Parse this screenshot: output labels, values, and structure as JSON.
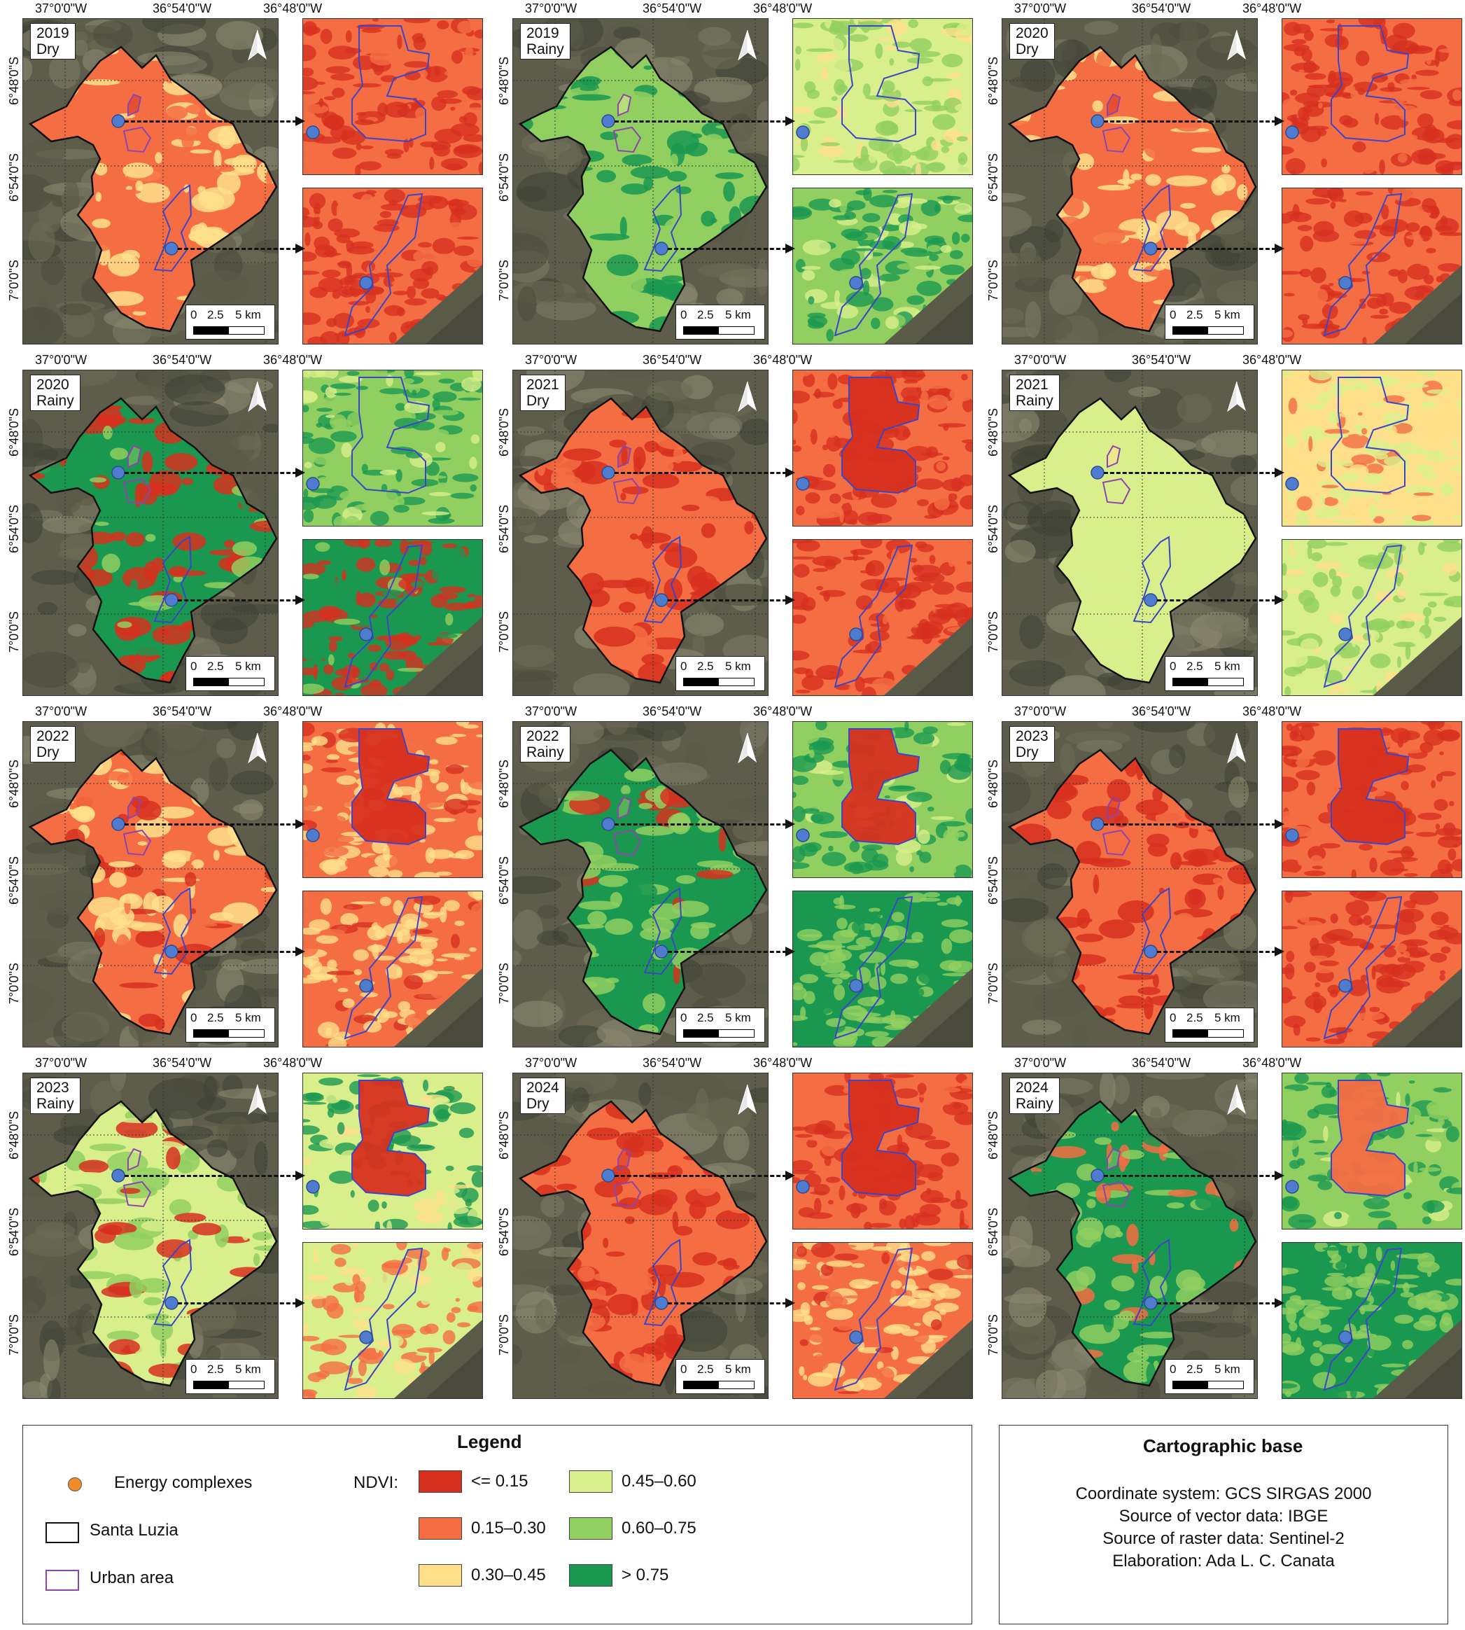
{
  "coordinates": {
    "x_ticks": [
      "37°0'0\"W",
      "36°54'0\"W",
      "36°48'0\"W"
    ],
    "y_ticks": [
      "6°48'0\"S",
      "6°54'0\"S",
      "7°0'0\"S"
    ]
  },
  "scale_bar": {
    "t0": "0",
    "t1": "2.5",
    "t2": "5 km"
  },
  "ndvi_colors": [
    "#d7301f",
    "#f46d43",
    "#fee08b",
    "#d9ef8b",
    "#91cf60",
    "#1a9850"
  ],
  "panels": [
    {
      "year": "2019",
      "season": "Dry",
      "base": 1,
      "noise": 2,
      "rest": 1,
      "inset_top_base": 1,
      "inset_top_noise": 0,
      "inset_bottom_base": 1,
      "inset_bottom_noise": 0
    },
    {
      "year": "2019",
      "season": "Rainy",
      "base": 4,
      "noise": 5,
      "rest": 4,
      "inset_top_base": 3,
      "inset_top_noise": 4,
      "inset_bottom_base": 4,
      "inset_bottom_noise": 5
    },
    {
      "year": "2020",
      "season": "Dry",
      "base": 1,
      "noise": 2,
      "rest": 1,
      "inset_top_base": 1,
      "inset_top_noise": 0,
      "inset_bottom_base": 1,
      "inset_bottom_noise": 0
    },
    {
      "year": "2020",
      "season": "Rainy",
      "base": 5,
      "noise": 0,
      "rest": 4,
      "inset_top_base": 4,
      "inset_top_noise": 5,
      "inset_bottom_base": 5,
      "inset_bottom_noise": 0
    },
    {
      "year": "2021",
      "season": "Dry",
      "base": 1,
      "noise": 0,
      "rest": 0,
      "inset_top_base": 1,
      "inset_top_noise": 0,
      "inset_bottom_base": 1,
      "inset_bottom_noise": 0
    },
    {
      "year": "2021",
      "season": "Rainy",
      "base": 3,
      "noise": 3,
      "rest": 3,
      "inset_top_base": 2,
      "inset_top_noise": 3,
      "inset_bottom_base": 3,
      "inset_bottom_noise": 4
    },
    {
      "year": "2022",
      "season": "Dry",
      "base": 1,
      "noise": 2,
      "rest": 0,
      "inset_top_base": 1,
      "inset_top_noise": 2,
      "inset_bottom_base": 1,
      "inset_bottom_noise": 2
    },
    {
      "year": "2022",
      "season": "Rainy",
      "base": 5,
      "noise": 4,
      "rest": 0,
      "inset_top_base": 4,
      "inset_top_noise": 5,
      "inset_bottom_base": 5,
      "inset_bottom_noise": 4
    },
    {
      "year": "2023",
      "season": "Dry",
      "base": 1,
      "noise": 0,
      "rest": 0,
      "inset_top_base": 1,
      "inset_top_noise": 0,
      "inset_bottom_base": 1,
      "inset_bottom_noise": 0
    },
    {
      "year": "2023",
      "season": "Rainy",
      "base": 3,
      "noise": 4,
      "rest": 0,
      "inset_top_base": 3,
      "inset_top_noise": 5,
      "inset_bottom_base": 3,
      "inset_bottom_noise": 1
    },
    {
      "year": "2024",
      "season": "Dry",
      "base": 1,
      "noise": 0,
      "rest": 0,
      "inset_top_base": 1,
      "inset_top_noise": 0,
      "inset_bottom_base": 1,
      "inset_bottom_noise": 2
    },
    {
      "year": "2024",
      "season": "Rainy",
      "base": 5,
      "noise": 4,
      "rest": 1,
      "inset_top_base": 4,
      "inset_top_noise": 5,
      "inset_bottom_base": 5,
      "inset_bottom_noise": 4
    }
  ],
  "legend": {
    "title": "Legend",
    "energy": "Energy complexes",
    "santa": "Santa Luzia",
    "urban": "Urban area",
    "ndvi_label": "NDVI:",
    "classes": [
      "<= 0.15",
      "0.15–0.30",
      "0.30–0.45",
      "0.45–0.60",
      "0.60–0.75",
      "> 0.75"
    ],
    "energy_color": "#f28c28",
    "urban_color": "#8e44ad"
  },
  "carto": {
    "title": "Cartographic base",
    "lines": [
      "Coordinate system: GCS SIRGAS 2000",
      "Source of vector data: IBGE",
      "Source of raster data: Sentinel-2",
      "Elaboration: Ada L. C. Canata"
    ]
  }
}
